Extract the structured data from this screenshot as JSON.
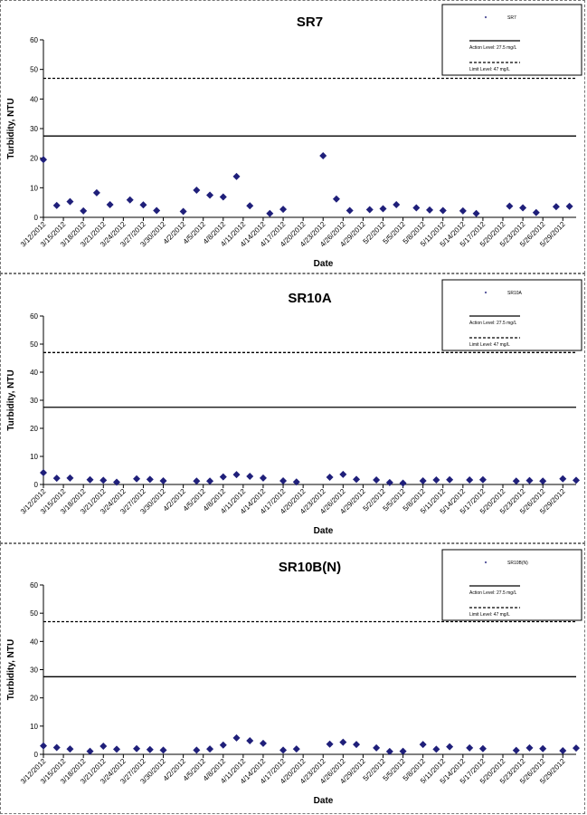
{
  "chart_data": [
    {
      "type": "scatter",
      "title": "SR7",
      "xlabel": "Date",
      "ylabel": "Turbidity, NTU",
      "ylim": [
        0,
        60
      ],
      "yticks": [
        0,
        10,
        20,
        30,
        40,
        50,
        60
      ],
      "xlim": [
        "3/12/2012",
        "5/31/2012"
      ],
      "xticks": [
        "3/12/2012",
        "3/15/2012",
        "3/18/2012",
        "3/21/2012",
        "3/24/2012",
        "3/27/2012",
        "3/30/2012",
        "4/2/2012",
        "4/5/2012",
        "4/8/2012",
        "4/11/2012",
        "4/14/2012",
        "4/17/2012",
        "4/20/2012",
        "4/23/2012",
        "4/26/2012",
        "4/29/2012",
        "5/2/2012",
        "5/5/2012",
        "5/8/2012",
        "5/11/2012",
        "5/14/2012",
        "5/17/2012",
        "5/20/2012",
        "5/23/2012",
        "5/26/2012",
        "5/29/2012"
      ],
      "legend_position": "top-right",
      "series": [
        {
          "name": "SR7",
          "color": "#1f1f7a",
          "marker": "diamond",
          "points": [
            [
              "3/12/2012",
              19.5
            ],
            [
              "3/14/2012",
              4
            ],
            [
              "3/16/2012",
              5.3
            ],
            [
              "3/18/2012",
              2.2
            ],
            [
              "3/20/2012",
              8.3
            ],
            [
              "3/22/2012",
              4.3
            ],
            [
              "3/25/2012",
              5.9
            ],
            [
              "3/27/2012",
              4.2
            ],
            [
              "3/29/2012",
              2.3
            ],
            [
              "4/2/2012",
              2
            ],
            [
              "4/4/2012",
              9.2
            ],
            [
              "4/6/2012",
              7.5
            ],
            [
              "4/8/2012",
              6.9
            ],
            [
              "4/10/2012",
              13.8
            ],
            [
              "4/12/2012",
              3.9
            ],
            [
              "4/15/2012",
              1.3
            ],
            [
              "4/17/2012",
              2.7
            ],
            [
              "4/23/2012",
              20.8
            ],
            [
              "4/25/2012",
              6.2
            ],
            [
              "4/27/2012",
              2.3
            ],
            [
              "4/30/2012",
              2.6
            ],
            [
              "5/2/2012",
              2.9
            ],
            [
              "5/4/2012",
              4.3
            ],
            [
              "5/7/2012",
              3.2
            ],
            [
              "5/9/2012",
              2.5
            ],
            [
              "5/11/2012",
              2.3
            ],
            [
              "5/14/2012",
              2.2
            ],
            [
              "5/16/2012",
              1.3
            ],
            [
              "5/21/2012",
              3.8
            ],
            [
              "5/23/2012",
              3.2
            ],
            [
              "5/25/2012",
              1.6
            ],
            [
              "5/28/2012",
              3.6
            ],
            [
              "5/30/2012",
              3.7
            ]
          ]
        },
        {
          "name": "Action Level: 27.5 mg/L",
          "color": "#000000",
          "type": "hline",
          "value": 27.5,
          "style": "solid"
        },
        {
          "name": "Limit Level: 47 mg/L",
          "color": "#000000",
          "type": "hline",
          "value": 47,
          "style": "dashed"
        }
      ]
    },
    {
      "type": "scatter",
      "title": "SR10A",
      "xlabel": "Date",
      "ylabel": "Turbidity, NTU",
      "ylim": [
        0,
        60
      ],
      "yticks": [
        0,
        10,
        20,
        30,
        40,
        50,
        60
      ],
      "xlim": [
        "3/12/2012",
        "5/31/2012"
      ],
      "xticks": [
        "3/12/2012",
        "3/15/2012",
        "3/18/2012",
        "3/21/2012",
        "3/24/2012",
        "3/27/2012",
        "3/30/2012",
        "4/2/2012",
        "4/5/2012",
        "4/8/2012",
        "4/11/2012",
        "4/14/2012",
        "4/17/2012",
        "4/20/2012",
        "4/23/2012",
        "4/26/2012",
        "4/29/2012",
        "5/2/2012",
        "5/5/2012",
        "5/8/2012",
        "5/11/2012",
        "5/14/2012",
        "5/17/2012",
        "5/20/2012",
        "5/23/2012",
        "5/26/2012",
        "5/29/2012"
      ],
      "legend_position": "top-right",
      "series": [
        {
          "name": "SR10A",
          "color": "#1f1f7a",
          "marker": "diamond",
          "points": [
            [
              "3/12/2012",
              4.2
            ],
            [
              "3/14/2012",
              2.2
            ],
            [
              "3/16/2012",
              2.3
            ],
            [
              "3/19/2012",
              1.7
            ],
            [
              "3/21/2012",
              1.5
            ],
            [
              "3/23/2012",
              0.8
            ],
            [
              "3/26/2012",
              2
            ],
            [
              "3/28/2012",
              1.8
            ],
            [
              "3/30/2012",
              1.3
            ],
            [
              "4/4/2012",
              1.2
            ],
            [
              "4/6/2012",
              1.2
            ],
            [
              "4/8/2012",
              2.7
            ],
            [
              "4/10/2012",
              3.5
            ],
            [
              "4/12/2012",
              2.9
            ],
            [
              "4/14/2012",
              2.3
            ],
            [
              "4/17/2012",
              1.3
            ],
            [
              "4/19/2012",
              0.9
            ],
            [
              "4/24/2012",
              2.6
            ],
            [
              "4/26/2012",
              3.6
            ],
            [
              "4/28/2012",
              1.8
            ],
            [
              "5/1/2012",
              1.6
            ],
            [
              "5/3/2012",
              0.7
            ],
            [
              "5/5/2012",
              0.5
            ],
            [
              "5/8/2012",
              1.3
            ],
            [
              "5/10/2012",
              1.6
            ],
            [
              "5/12/2012",
              1.7
            ],
            [
              "5/15/2012",
              1.6
            ],
            [
              "5/17/2012",
              1.7
            ],
            [
              "5/22/2012",
              1.2
            ],
            [
              "5/24/2012",
              1.4
            ],
            [
              "5/26/2012",
              1.2
            ],
            [
              "5/29/2012",
              2
            ],
            [
              "5/31/2012",
              1.5
            ]
          ]
        },
        {
          "name": "Action Level: 27.5 mg/L",
          "color": "#000000",
          "type": "hline",
          "value": 27.5,
          "style": "solid"
        },
        {
          "name": "Limit Level: 47 mg/L",
          "color": "#000000",
          "type": "hline",
          "value": 47,
          "style": "dashed"
        }
      ]
    },
    {
      "type": "scatter",
      "title": "SR10B(N)",
      "xlabel": "Date",
      "ylabel": "Turbidity, NTU",
      "ylim": [
        0,
        60
      ],
      "yticks": [
        0,
        10,
        20,
        30,
        40,
        50,
        60
      ],
      "xlim": [
        "3/12/2012",
        "5/31/2012"
      ],
      "xticks": [
        "3/12/2012",
        "3/15/2012",
        "3/18/2012",
        "3/21/2012",
        "3/24/2012",
        "3/27/2012",
        "3/30/2012",
        "4/2/2012",
        "4/5/2012",
        "4/8/2012",
        "4/11/2012",
        "4/14/2012",
        "4/17/2012",
        "4/20/2012",
        "4/23/2012",
        "4/26/2012",
        "4/29/2012",
        "5/2/2012",
        "5/5/2012",
        "5/8/2012",
        "5/11/2012",
        "5/14/2012",
        "5/17/2012",
        "5/20/2012",
        "5/23/2012",
        "5/26/2012",
        "5/29/2012"
      ],
      "legend_position": "top-right",
      "series": [
        {
          "name": "SR10B(N)",
          "color": "#1f1f7a",
          "marker": "diamond",
          "points": [
            [
              "3/12/2012",
              3
            ],
            [
              "3/14/2012",
              2.4
            ],
            [
              "3/16/2012",
              1.9
            ],
            [
              "3/19/2012",
              1.1
            ],
            [
              "3/21/2012",
              2.9
            ],
            [
              "3/23/2012",
              1.8
            ],
            [
              "3/26/2012",
              2
            ],
            [
              "3/28/2012",
              1.7
            ],
            [
              "3/30/2012",
              1.5
            ],
            [
              "4/4/2012",
              1.5
            ],
            [
              "4/6/2012",
              1.9
            ],
            [
              "4/8/2012",
              3.3
            ],
            [
              "4/10/2012",
              5.8
            ],
            [
              "4/12/2012",
              4.8
            ],
            [
              "4/14/2012",
              3.9
            ],
            [
              "4/17/2012",
              1.5
            ],
            [
              "4/19/2012",
              1.9
            ],
            [
              "4/24/2012",
              3.6
            ],
            [
              "4/26/2012",
              4.3
            ],
            [
              "4/28/2012",
              3.5
            ],
            [
              "5/1/2012",
              2.3
            ],
            [
              "5/3/2012",
              1
            ],
            [
              "5/5/2012",
              1.1
            ],
            [
              "5/8/2012",
              3.5
            ],
            [
              "5/10/2012",
              1.8
            ],
            [
              "5/12/2012",
              2.7
            ],
            [
              "5/15/2012",
              2.3
            ],
            [
              "5/17/2012",
              2
            ],
            [
              "5/22/2012",
              1.4
            ],
            [
              "5/24/2012",
              2.3
            ],
            [
              "5/26/2012",
              2
            ],
            [
              "5/29/2012",
              1.3
            ],
            [
              "5/31/2012",
              2.2
            ]
          ]
        },
        {
          "name": "Action Level: 27.5 mg/L",
          "color": "#000000",
          "type": "hline",
          "value": 27.5,
          "style": "solid"
        },
        {
          "name": "Limit Level: 47 mg/L",
          "color": "#000000",
          "type": "hline",
          "value": 47,
          "style": "dashed"
        }
      ]
    }
  ]
}
